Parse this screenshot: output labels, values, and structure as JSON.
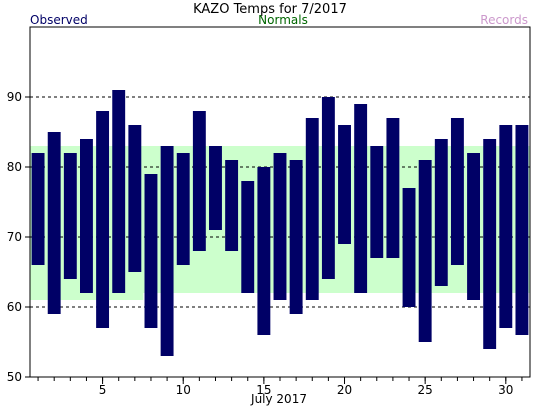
{
  "chart_data": {
    "type": "bar",
    "title": "KAZO Temps for 7/2017",
    "xlabel": "July 2017",
    "legend": {
      "observed": "Observed",
      "normals": "Normals",
      "records": "Records"
    },
    "colors": {
      "observed": "#000066",
      "normals": "#ccffcc",
      "observed_label": "#000066",
      "normals_label": "#006600",
      "records_label": "#cc99cc",
      "grid": "#000000"
    },
    "ylim": [
      50,
      100
    ],
    "yticks": [
      50,
      60,
      70,
      80,
      90
    ],
    "xlim": [
      0.5,
      31.5
    ],
    "xticks": [
      5,
      10,
      15,
      20,
      25,
      30
    ],
    "xminor": [
      1,
      2,
      3,
      4,
      5,
      6,
      7,
      8,
      9,
      10,
      11,
      12,
      13,
      14,
      15,
      16,
      17,
      18,
      19,
      20,
      21,
      22,
      23,
      24,
      25,
      26,
      27,
      28,
      29,
      30,
      31
    ],
    "grid_lines": [
      60,
      70,
      80,
      90
    ],
    "normals": [
      {
        "day": 1,
        "low": 61,
        "high": 83
      },
      {
        "day": 2,
        "low": 61,
        "high": 83
      },
      {
        "day": 3,
        "low": 61,
        "high": 83
      },
      {
        "day": 4,
        "low": 61,
        "high": 83
      },
      {
        "day": 5,
        "low": 61,
        "high": 83
      },
      {
        "day": 6,
        "low": 61,
        "high": 83
      },
      {
        "day": 7,
        "low": 61,
        "high": 83
      },
      {
        "day": 8,
        "low": 62,
        "high": 83
      },
      {
        "day": 9,
        "low": 62,
        "high": 83
      },
      {
        "day": 10,
        "low": 62,
        "high": 83
      },
      {
        "day": 11,
        "low": 62,
        "high": 83
      },
      {
        "day": 12,
        "low": 62,
        "high": 83
      },
      {
        "day": 13,
        "low": 62,
        "high": 83
      },
      {
        "day": 14,
        "low": 62,
        "high": 83
      },
      {
        "day": 15,
        "low": 62,
        "high": 83
      },
      {
        "day": 16,
        "low": 62,
        "high": 83
      },
      {
        "day": 17,
        "low": 62,
        "high": 83
      },
      {
        "day": 18,
        "low": 62,
        "high": 83
      },
      {
        "day": 19,
        "low": 62,
        "high": 83
      },
      {
        "day": 20,
        "low": 62,
        "high": 83
      },
      {
        "day": 21,
        "low": 62,
        "high": 83
      },
      {
        "day": 22,
        "low": 62,
        "high": 83
      },
      {
        "day": 23,
        "low": 62,
        "high": 83
      },
      {
        "day": 24,
        "low": 62,
        "high": 83
      },
      {
        "day": 25,
        "low": 62,
        "high": 83
      },
      {
        "day": 26,
        "low": 62,
        "high": 83
      },
      {
        "day": 27,
        "low": 62,
        "high": 83
      },
      {
        "day": 28,
        "low": 62,
        "high": 83
      },
      {
        "day": 29,
        "low": 62,
        "high": 83
      },
      {
        "day": 30,
        "low": 62,
        "high": 83
      },
      {
        "day": 31,
        "low": 62,
        "high": 83
      }
    ],
    "observed": [
      {
        "day": 1,
        "low": 66,
        "high": 82
      },
      {
        "day": 2,
        "low": 59,
        "high": 85
      },
      {
        "day": 3,
        "low": 64,
        "high": 82
      },
      {
        "day": 4,
        "low": 62,
        "high": 84
      },
      {
        "day": 5,
        "low": 57,
        "high": 88
      },
      {
        "day": 6,
        "low": 62,
        "high": 91
      },
      {
        "day": 7,
        "low": 65,
        "high": 86
      },
      {
        "day": 8,
        "low": 57,
        "high": 79
      },
      {
        "day": 9,
        "low": 53,
        "high": 83
      },
      {
        "day": 10,
        "low": 66,
        "high": 82
      },
      {
        "day": 11,
        "low": 68,
        "high": 88
      },
      {
        "day": 12,
        "low": 71,
        "high": 83
      },
      {
        "day": 13,
        "low": 68,
        "high": 81
      },
      {
        "day": 14,
        "low": 62,
        "high": 78
      },
      {
        "day": 15,
        "low": 56,
        "high": 80
      },
      {
        "day": 16,
        "low": 61,
        "high": 82
      },
      {
        "day": 17,
        "low": 59,
        "high": 81
      },
      {
        "day": 18,
        "low": 61,
        "high": 87
      },
      {
        "day": 19,
        "low": 64,
        "high": 90
      },
      {
        "day": 20,
        "low": 69,
        "high": 86
      },
      {
        "day": 21,
        "low": 62,
        "high": 89
      },
      {
        "day": 22,
        "low": 67,
        "high": 83
      },
      {
        "day": 23,
        "low": 67,
        "high": 87
      },
      {
        "day": 24,
        "low": 60,
        "high": 77
      },
      {
        "day": 25,
        "low": 55,
        "high": 81
      },
      {
        "day": 26,
        "low": 63,
        "high": 84
      },
      {
        "day": 27,
        "low": 66,
        "high": 87
      },
      {
        "day": 28,
        "low": 61,
        "high": 82
      },
      {
        "day": 29,
        "low": 54,
        "high": 84
      },
      {
        "day": 30,
        "low": 57,
        "high": 86
      },
      {
        "day": 31,
        "low": 56,
        "high": 86
      }
    ]
  }
}
